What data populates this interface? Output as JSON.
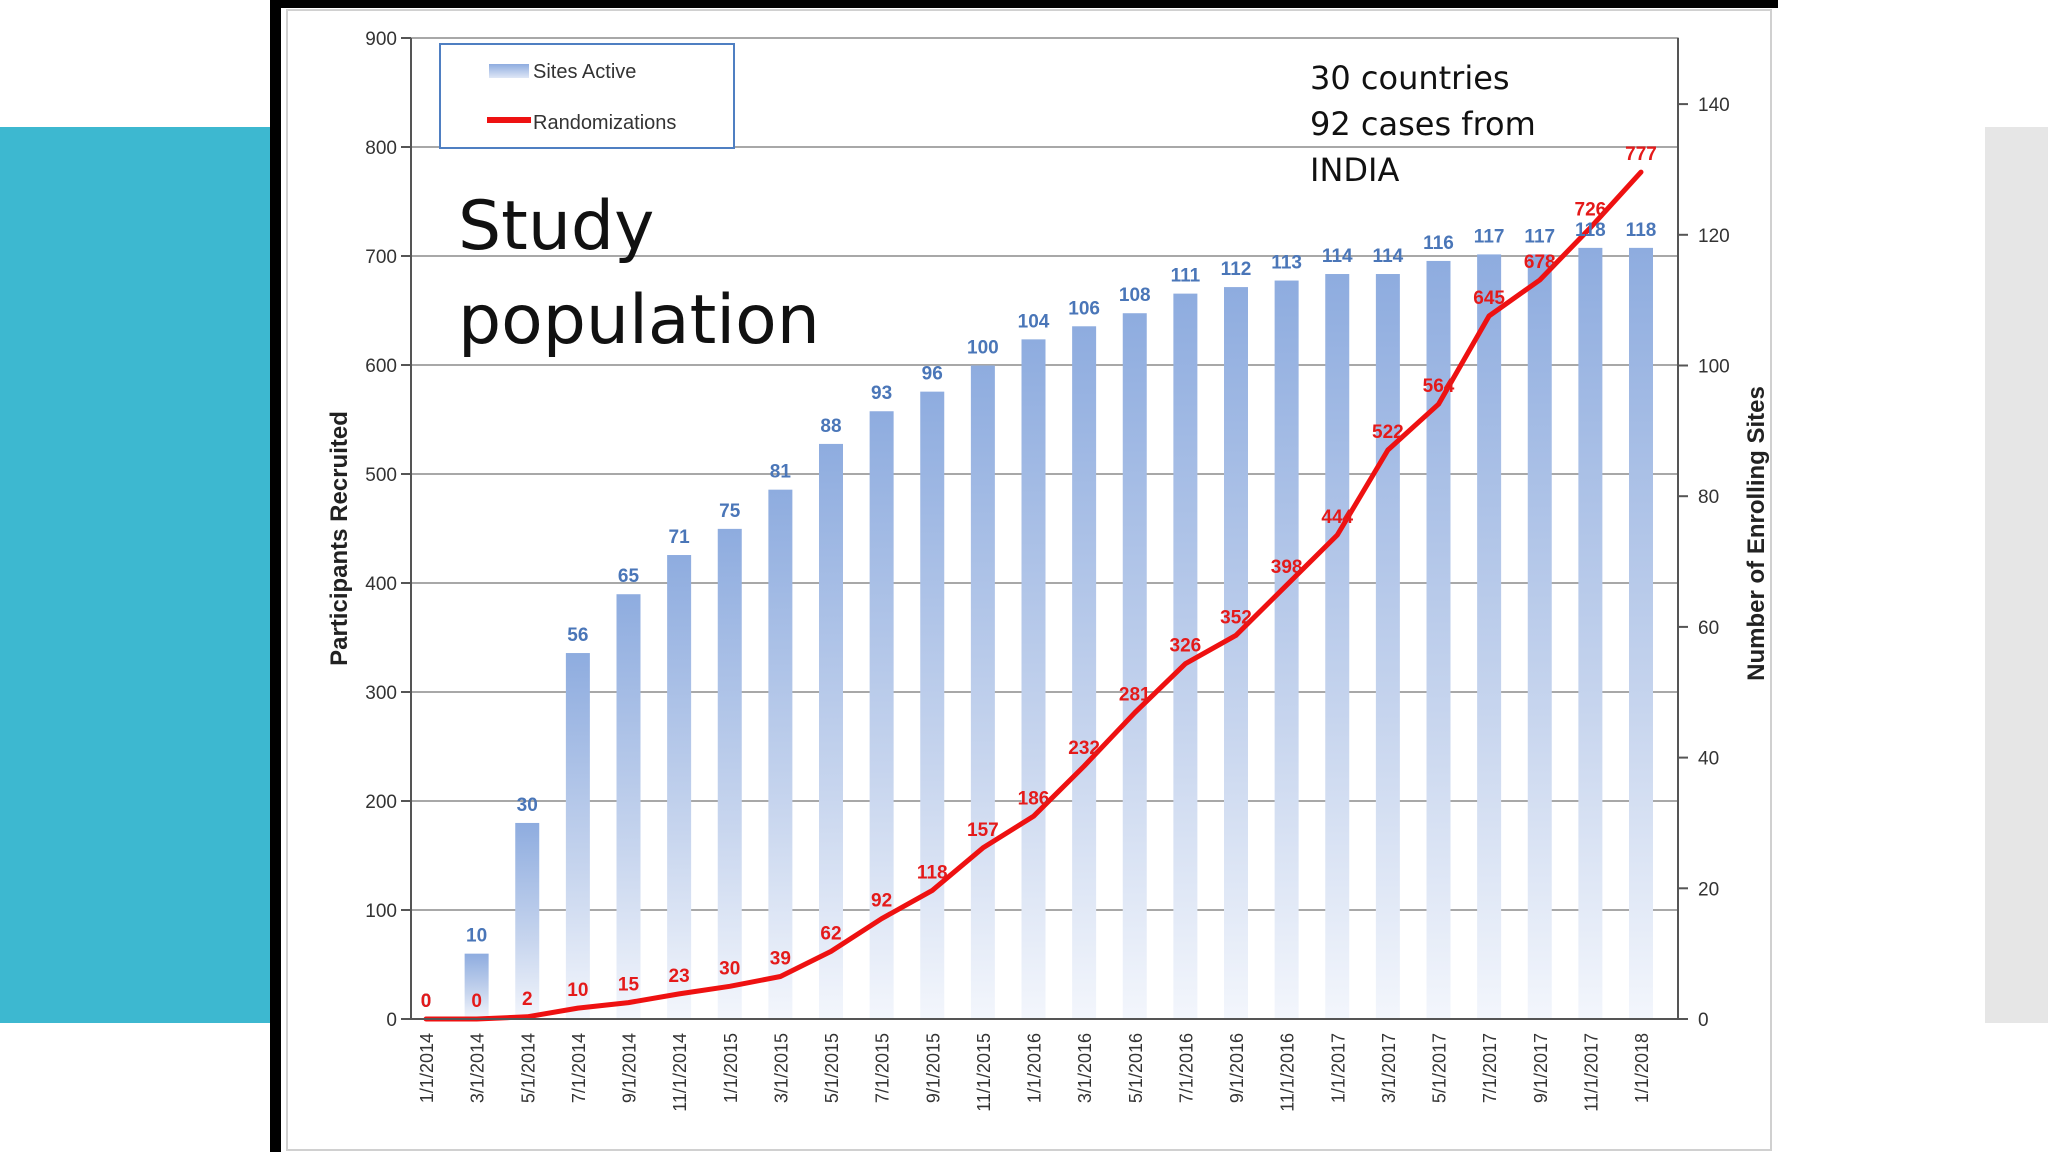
{
  "slide": {
    "title_lines": [
      "Study",
      "population"
    ],
    "note_lines": [
      "30 countries",
      "92 cases from",
      "INDIA"
    ]
  },
  "colors": {
    "teal_panel": "#3db8d0",
    "bar_blue": "#8eacdf",
    "line_red": "#ee1111",
    "label_blue": "#4a76b8",
    "label_red": "#e41a1a"
  },
  "chart_data": {
    "type": "bar",
    "categories": [
      "1/1/2014",
      "3/1/2014",
      "5/1/2014",
      "7/1/2014",
      "9/1/2014",
      "11/1/2014",
      "1/1/2015",
      "3/1/2015",
      "5/1/2015",
      "7/1/2015",
      "9/1/2015",
      "11/1/2015",
      "1/1/2016",
      "3/1/2016",
      "5/1/2016",
      "7/1/2016",
      "9/1/2016",
      "11/1/2016",
      "1/1/2017",
      "3/1/2017",
      "5/1/2017",
      "7/1/2017",
      "9/1/2017",
      "11/1/2017",
      "1/1/2018"
    ],
    "series": [
      {
        "name": "Sites Active",
        "type": "bar",
        "axis": "right",
        "values": [
          0,
          10,
          30,
          56,
          65,
          71,
          75,
          81,
          88,
          93,
          96,
          100,
          104,
          106,
          108,
          111,
          112,
          113,
          114,
          114,
          116,
          117,
          117,
          118,
          118
        ]
      },
      {
        "name": "Randomizations",
        "type": "line",
        "axis": "left",
        "values": [
          0,
          0,
          2,
          10,
          15,
          23,
          30,
          39,
          62,
          92,
          118,
          157,
          186,
          232,
          281,
          326,
          352,
          398,
          444,
          522,
          564,
          645,
          678,
          726,
          777
        ]
      }
    ],
    "ylabel": "Participants Recruited",
    "ylabel_right": "Number of Enrolling Sites",
    "ylim": [
      0,
      900
    ],
    "yticks": [
      0,
      100,
      200,
      300,
      400,
      500,
      600,
      700,
      800,
      900
    ],
    "ylim_right": [
      0,
      150
    ],
    "yticks_right": [
      0,
      20,
      40,
      60,
      80,
      100,
      120,
      140
    ],
    "grid": true,
    "legend_position": "top-left"
  }
}
